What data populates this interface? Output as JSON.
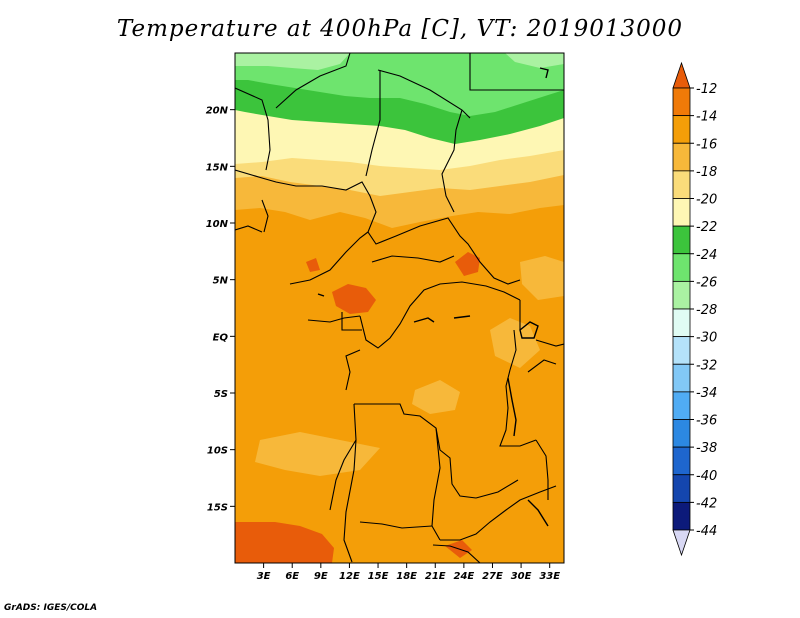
{
  "title": "Temperature at 400hPa [C], VT: 2019013000",
  "footer": "GrADS: IGES/COLA",
  "map": {
    "lon_range": [
      0,
      34.5
    ],
    "lat_range": [
      -20,
      25
    ],
    "lat_ticks": [
      {
        "value": 20,
        "label": "20N"
      },
      {
        "value": 15,
        "label": "15N"
      },
      {
        "value": 10,
        "label": "10N"
      },
      {
        "value": 5,
        "label": "5N"
      },
      {
        "value": 0,
        "label": "EQ"
      },
      {
        "value": -5,
        "label": "5S"
      },
      {
        "value": -10,
        "label": "10S"
      },
      {
        "value": -15,
        "label": "15S"
      }
    ],
    "lon_ticks": [
      {
        "value": 3,
        "label": "3E"
      },
      {
        "value": 6,
        "label": "6E"
      },
      {
        "value": 9,
        "label": "9E"
      },
      {
        "value": 12,
        "label": "12E"
      },
      {
        "value": 15,
        "label": "15E"
      },
      {
        "value": 18,
        "label": "18E"
      },
      {
        "value": 21,
        "label": "21E"
      },
      {
        "value": 24,
        "label": "24E"
      },
      {
        "value": 27,
        "label": "27E"
      },
      {
        "value": 30,
        "label": "30E"
      },
      {
        "value": 33,
        "label": "33E"
      }
    ]
  },
  "colorbar": {
    "levels": [
      "-12",
      "-14",
      "-16",
      "-18",
      "-20",
      "-22",
      "-24",
      "-26",
      "-28",
      "-30",
      "-32",
      "-34",
      "-36",
      "-38",
      "-40",
      "-42",
      "-44"
    ],
    "colors": [
      "#e85c0a",
      "#f07a08",
      "#f49e08",
      "#f7b83a",
      "#fadc7a",
      "#fef7b4",
      "#3cc43c",
      "#6ee46e",
      "#aaf2a2",
      "#e0fcf4",
      "#b4e2fa",
      "#82c8f6",
      "#50acf4",
      "#2c88e2",
      "#1e66ce",
      "#1446ae",
      "#0c1a7a",
      "#d8d8f4"
    ]
  }
}
